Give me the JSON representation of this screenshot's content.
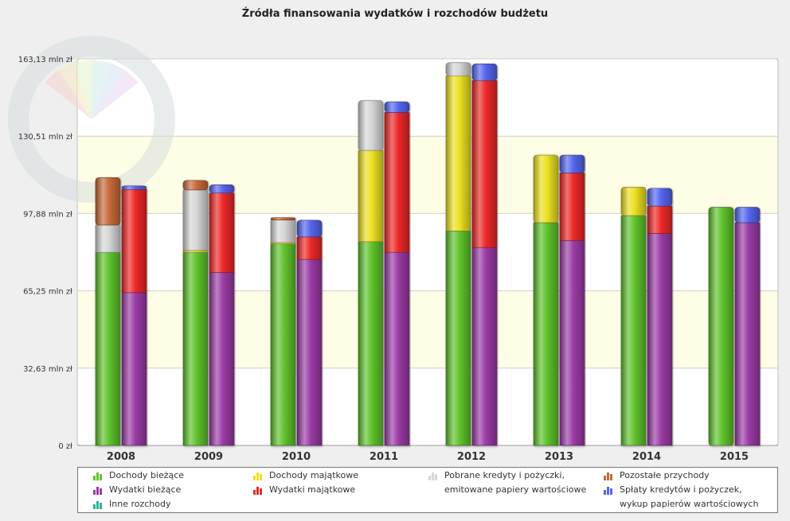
{
  "chart_data": {
    "type": "bar",
    "stacked": true,
    "title": "Źródła finansowania wydatków i rozchodów budżetu",
    "categories": [
      "2008",
      "2009",
      "2010",
      "2011",
      "2012",
      "2013",
      "2014",
      "2015"
    ],
    "y_ticks": [
      "0 zł",
      "32,63 mln zł",
      "65,25 mln zł",
      "97,88 mln zł",
      "130,51 mln zł",
      "163,13 mln zł"
    ],
    "ylim": [
      0,
      163.13
    ],
    "grid": true,
    "legend_position": "bottom",
    "stacks": [
      {
        "name": "income",
        "series": [
          {
            "name": "Dochody bieżące",
            "color": "#5fc22c",
            "values": [
              81.5,
              81.5,
              85.0,
              86.0,
              90.5,
              94.0,
              97.0,
              100.5
            ]
          },
          {
            "name": "Dochody majątkowe",
            "color": "#ece022",
            "values": [
              0,
              0.8,
              0.6,
              38.5,
              65.5,
              28.5,
              12.0,
              0
            ]
          },
          {
            "name": "Pobrane kredyty i pożyczki, emitowane papiery wartościowe",
            "color": "#d6d6d6",
            "values": [
              11.5,
              25.5,
              9.5,
              21.0,
              5.5,
              0,
              0,
              0
            ]
          },
          {
            "name": "Pozostałe przychody",
            "color": "#c86a3a",
            "values": [
              20.0,
              4.0,
              1.0,
              0,
              0,
              0,
              0,
              0
            ]
          }
        ]
      },
      {
        "name": "expenses",
        "series": [
          {
            "name": "Wydatki bieżące",
            "color": "#9b3ba6",
            "values": [
              64.5,
              73.0,
              78.5,
              81.5,
              83.5,
              86.5,
              89.5,
              94.0
            ]
          },
          {
            "name": "Wydatki majątkowe",
            "color": "#ee2828",
            "values": [
              43.5,
              33.5,
              9.5,
              59.0,
              70.5,
              28.5,
              11.5,
              0
            ]
          },
          {
            "name": "Spłaty kredytów i pożyczek, wykup papierów wartościowych",
            "color": "#5566ee",
            "values": [
              1.5,
              3.5,
              7.0,
              4.5,
              7.0,
              7.5,
              7.5,
              6.5
            ]
          },
          {
            "name": "Inne rozchody",
            "color": "#2bb0a0",
            "values": [
              0,
              0,
              0,
              0,
              0,
              0,
              0,
              0
            ]
          }
        ]
      }
    ],
    "legend": [
      {
        "label": "Dochody bieżące",
        "color": "#5fc22c"
      },
      {
        "label": "Dochody majątkowe",
        "color": "#ece022"
      },
      {
        "label": "Pobrane kredyty i pożyczki, emitowane papiery wartościowe",
        "color": "#d6d6d6"
      },
      {
        "label": "Pozostałe przychody",
        "color": "#c86a3a"
      },
      {
        "label": "Wydatki bieżące",
        "color": "#9b3ba6"
      },
      {
        "label": "Wydatki majątkowe",
        "color": "#ee2828"
      },
      {
        "label": "Spłaty kredytów i pożyczek, wykup papierów wartościowych",
        "color": "#5566ee"
      },
      {
        "label": "Inne rozchody",
        "color": "#2bb0a0"
      }
    ]
  }
}
